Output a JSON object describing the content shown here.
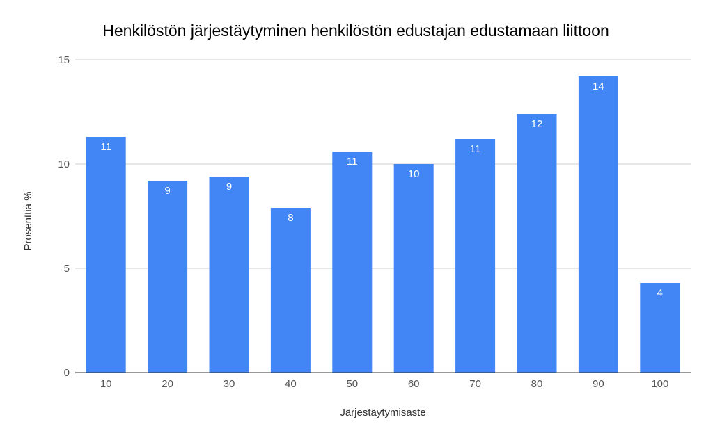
{
  "chart_data": {
    "type": "bar",
    "title": "Henkilöstön järjestäytyminen henkilöstön edustajan edustamaan liittoon",
    "xlabel": "Järjestäytymisaste",
    "ylabel": "Prosenttia %",
    "categories": [
      "10",
      "20",
      "30",
      "40",
      "50",
      "60",
      "70",
      "80",
      "90",
      "100"
    ],
    "values": [
      11.3,
      9.2,
      9.4,
      7.9,
      10.6,
      10.0,
      11.2,
      12.4,
      14.2,
      4.3
    ],
    "data_labels": [
      "11",
      "9",
      "9",
      "8",
      "11",
      "10",
      "11",
      "12",
      "14",
      "4"
    ],
    "ylim": [
      0,
      15
    ],
    "yticks": [
      "0",
      "5",
      "10",
      "15"
    ],
    "grid": true,
    "bar_color": "#4285f4"
  }
}
